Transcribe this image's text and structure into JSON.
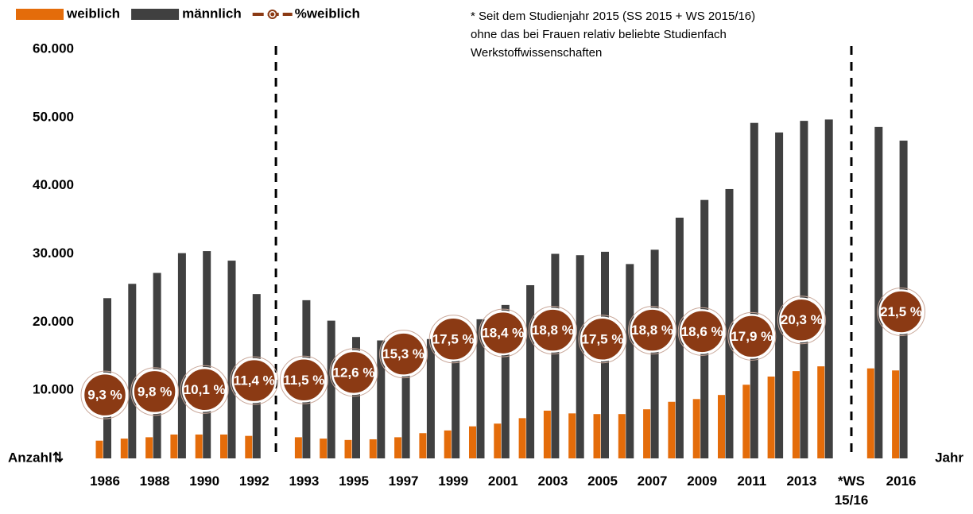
{
  "chart_data": {
    "type": "bar",
    "annotation": [
      "* Seit dem Studienjahr 2015 (SS 2015 + WS 2015/16)",
      "ohne das bei Frauen relativ beliebte Studienfach",
      "Werkstoffwissenschaften"
    ],
    "y_label": "Anzahl⇅",
    "x_label": "Jahr",
    "categories": [
      "1986",
      null,
      "1988",
      null,
      "1990",
      null,
      "1992",
      "1993",
      null,
      "1995",
      null,
      "1997",
      null,
      "1999",
      null,
      "2001",
      null,
      "2003",
      null,
      "2005",
      null,
      "2007",
      null,
      "2009",
      null,
      "2011",
      null,
      "2013",
      null,
      "*WS\n15/16",
      null,
      "2016"
    ],
    "series": [
      {
        "name": "weiblich",
        "color": "#e46c0a",
        "values": [
          2600,
          2900,
          3100,
          3500,
          3500,
          3500,
          3300,
          3100,
          2900,
          2700,
          2800,
          3100,
          3700,
          4100,
          4700,
          5100,
          5900,
          7000,
          6600,
          6500,
          6500,
          7200,
          8300,
          8700,
          9300,
          10800,
          12000,
          12800,
          13500,
          null,
          13200,
          12900
        ]
      },
      {
        "name": "männlich",
        "color": "#404040",
        "values": [
          23500,
          25600,
          27200,
          30100,
          30400,
          29000,
          24100,
          23200,
          20200,
          17800,
          17300,
          16500,
          17500,
          19000,
          20400,
          22500,
          25400,
          30000,
          29800,
          30300,
          28500,
          30600,
          35300,
          37900,
          39500,
          49200,
          47800,
          49500,
          49700,
          null,
          48600,
          46600
        ]
      },
      {
        "name": "%weiblich",
        "color": "#8b3a14",
        "axis": "y2",
        "values": [
          9.3,
          null,
          9.8,
          null,
          10.1,
          null,
          11.4,
          11.5,
          null,
          12.6,
          null,
          15.3,
          null,
          17.5,
          null,
          18.4,
          null,
          18.8,
          null,
          17.5,
          null,
          18.8,
          null,
          18.6,
          null,
          17.9,
          null,
          20.3,
          null,
          null,
          null,
          21.5
        ],
        "value_labels": [
          "9,3 %",
          null,
          "9,8 %",
          null,
          "10,1 %",
          null,
          "11,4 %",
          "11,5 %",
          null,
          "12,6 %",
          null,
          "15,3 %",
          null,
          "17,5 %",
          null,
          "18,4 %",
          null,
          "18,8 %",
          null,
          "17,5 %",
          null,
          "18,8 %",
          null,
          "18,6 %",
          null,
          "17,9 %",
          null,
          "20,3 %",
          null,
          null,
          null,
          "21,5 %"
        ]
      }
    ],
    "ylim": [
      0,
      60000
    ],
    "yticks": [
      {
        "value": 10000,
        "label": "10.000"
      },
      {
        "value": 20000,
        "label": "20.000"
      },
      {
        "value": 30000,
        "label": "30.000"
      },
      {
        "value": 40000,
        "label": "40.000"
      },
      {
        "value": 50000,
        "label": "50.000"
      },
      {
        "value": 60000,
        "label": "60.000"
      }
    ],
    "y2lim": [
      0,
      60
    ]
  }
}
